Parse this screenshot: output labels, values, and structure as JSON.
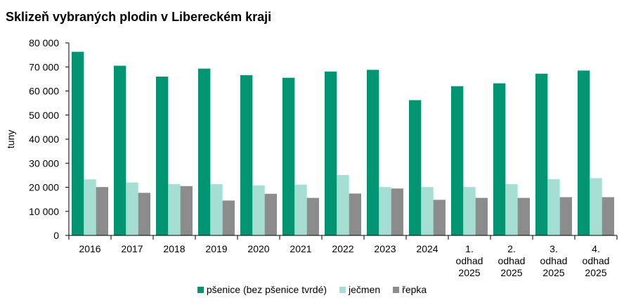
{
  "chart_data": {
    "type": "bar",
    "title": "Sklizeň vybraných plodin v Libereckém kraji",
    "xlabel": "",
    "ylabel": "tuny",
    "ylim": [
      0,
      80000
    ],
    "yticks": [
      0,
      10000,
      20000,
      30000,
      40000,
      50000,
      60000,
      70000,
      80000
    ],
    "ytick_labels": [
      "0",
      "10 000",
      "20 000",
      "30 000",
      "40 000",
      "50 000",
      "60 000",
      "70 000",
      "80 000"
    ],
    "categories": [
      [
        "2016"
      ],
      [
        "2017"
      ],
      [
        "2018"
      ],
      [
        "2019"
      ],
      [
        "2020"
      ],
      [
        "2021"
      ],
      [
        "2022"
      ],
      [
        "2023"
      ],
      [
        "2024"
      ],
      [
        "1.",
        "odhad",
        "2025"
      ],
      [
        "2.",
        "odhad",
        "2025"
      ],
      [
        "3.",
        "odhad",
        "2025"
      ],
      [
        "4.",
        "odhad",
        "2025"
      ]
    ],
    "series": [
      {
        "name": "pšenice (bez pšenice tvrdé)",
        "color": "#009473",
        "values": [
          76300,
          70500,
          66000,
          69300,
          66600,
          65500,
          68100,
          68800,
          56200,
          62000,
          63200,
          67200,
          68500
        ]
      },
      {
        "name": "ječmen",
        "color": "#a6ded4",
        "values": [
          23300,
          22000,
          21300,
          21300,
          20800,
          21100,
          25100,
          20100,
          20100,
          20100,
          21300,
          23400,
          23800
        ]
      },
      {
        "name": "řepka",
        "color": "#8c8c8c",
        "values": [
          20100,
          17700,
          20500,
          14500,
          17300,
          15600,
          17400,
          19500,
          14800,
          15600,
          15600,
          15900,
          15900
        ]
      }
    ],
    "legend_position": "bottom",
    "grid": false
  }
}
